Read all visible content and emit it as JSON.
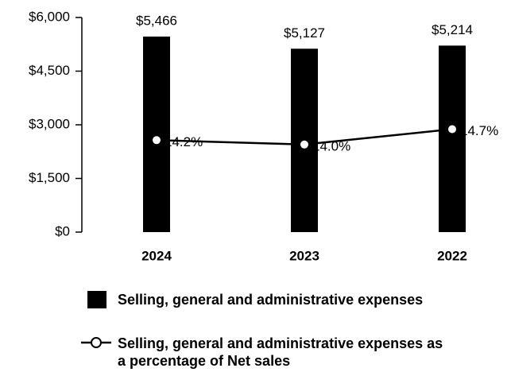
{
  "chart_data": {
    "type": "bar_line",
    "categories": [
      "2024",
      "2023",
      "2022"
    ],
    "series": [
      {
        "name": "Selling, general and administrative expenses",
        "type": "bar",
        "color": "#000000",
        "values": [
          5466,
          5127,
          5214
        ],
        "value_labels": [
          "$5,466",
          "$5,127",
          "$5,214"
        ]
      },
      {
        "name": "Selling, general and administrative expenses as a percentage of Net sales",
        "type": "line",
        "axis": "y2",
        "color": "#000000",
        "values": [
          14.2,
          14.0,
          14.7
        ],
        "value_labels": [
          "14.2%",
          "14.0%",
          "14.7%"
        ]
      }
    ],
    "ylim": [
      0,
      6000
    ],
    "yticks": [
      {
        "value": 0,
        "label": "$0"
      },
      {
        "value": 1500,
        "label": "$1,500"
      },
      {
        "value": 3000,
        "label": "$3,000"
      },
      {
        "value": 4500,
        "label": "$4,500"
      },
      {
        "value": 6000,
        "label": "$6,000"
      }
    ],
    "y2lim": [
      10,
      19.8
    ],
    "grid": false
  }
}
